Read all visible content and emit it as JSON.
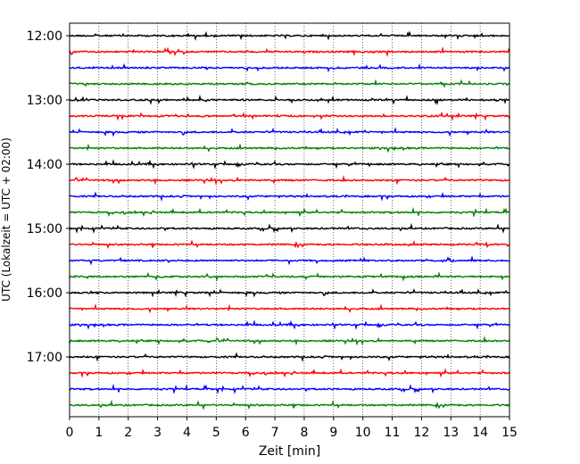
{
  "chart_data": {
    "type": "line",
    "title": "",
    "xlabel": "Zeit  [min]",
    "ylabel": "UTC (Lokalzeit = UTC + 02:00)",
    "xlim": [
      0,
      15
    ],
    "x_ticks": [
      "0",
      "1",
      "2",
      "3",
      "4",
      "5",
      "6",
      "7",
      "8",
      "9",
      "10",
      "11",
      "12",
      "13",
      "14",
      "15"
    ],
    "y_ticks": [
      "12:00",
      "13:00",
      "14:00",
      "15:00",
      "16:00",
      "17:00"
    ],
    "grid": "vertical dotted lines at each minute",
    "legend": "none",
    "trace_colors": [
      "#000000",
      "#ff0000",
      "#0000ff",
      "#008000"
    ],
    "traces_start": "12:00",
    "trace_interval_minutes": 15,
    "trace_count": 24
  }
}
